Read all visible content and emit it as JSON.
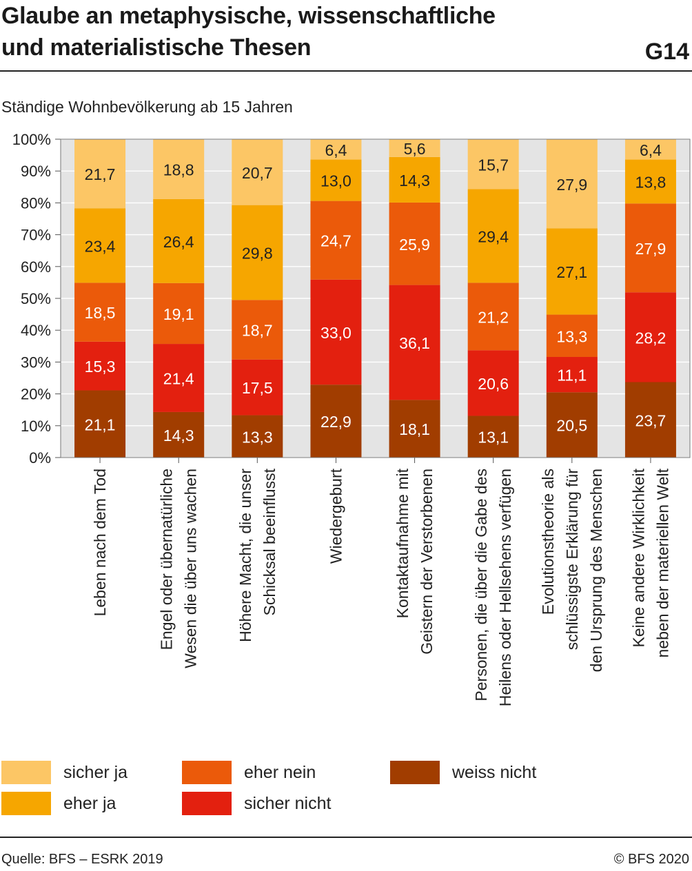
{
  "header": {
    "title_line1": "Glaube an metaphysische, wissenschaftliche",
    "title_line2": "und materialistische Thesen",
    "code": "G14",
    "subtitle": "Ständige Wohnbevölkerung ab 15 Jahren"
  },
  "footer": {
    "source": "Quelle: BFS – ESRK 2019",
    "copyright": "© BFS 2020"
  },
  "legend": {
    "sicher_ja": "sicher ja",
    "eher_ja": "eher ja",
    "eher_nein": "eher nein",
    "sicher_nicht": "sicher nicht",
    "weiss_nicht": "weiss nicht"
  },
  "chart_data": {
    "type": "bar",
    "stacked": true,
    "ylim": [
      0,
      100
    ],
    "y_ticks": [
      "0%",
      "10%",
      "20%",
      "30%",
      "40%",
      "50%",
      "60%",
      "70%",
      "80%",
      "90%",
      "100%"
    ],
    "categories": [
      [
        "Leben nach dem Tod"
      ],
      [
        "Engel oder übernatürliche",
        "Wesen die über uns wachen"
      ],
      [
        "Höhere Macht, die unser",
        "Schicksal beeinflusst"
      ],
      [
        "Wiedergeburt"
      ],
      [
        "Kontaktaufnahme mit",
        "Geistern der Verstorbenen"
      ],
      [
        "Personen, die über die Gabe des",
        "Heilens oder Hellsehens verfügen"
      ],
      [
        "Evolutionstheorie als",
        "schlüssigste Erklärung für",
        "den Ursprung des Menschen"
      ],
      [
        "Keine andere Wirklichkeit",
        "neben der materiellen Welt"
      ]
    ],
    "series": [
      {
        "name": "weiss nicht",
        "color": "#A13D00",
        "values": [
          21.1,
          14.3,
          13.3,
          22.9,
          18.1,
          13.1,
          20.5,
          23.7
        ],
        "labels": [
          "21,1",
          "14,3",
          "13,3",
          "22,9",
          "18,1",
          "13,1",
          "20,5",
          "23,7"
        ]
      },
      {
        "name": "sicher nicht",
        "color": "#E3200F",
        "values": [
          15.3,
          21.4,
          17.5,
          33.0,
          36.1,
          20.6,
          11.1,
          28.2
        ],
        "labels": [
          "15,3",
          "21,4",
          "17,5",
          "33,0",
          "36,1",
          "20,6",
          "11,1",
          "28,2"
        ]
      },
      {
        "name": "eher nein",
        "color": "#EB5A0A",
        "values": [
          18.5,
          19.1,
          18.7,
          24.7,
          25.9,
          21.2,
          13.3,
          27.9
        ],
        "labels": [
          "18,5",
          "19,1",
          "18,7",
          "24,7",
          "25,9",
          "21,2",
          "13,3",
          "27,9"
        ]
      },
      {
        "name": "eher ja",
        "color": "#F6A600",
        "values": [
          23.4,
          26.4,
          29.8,
          13.0,
          14.3,
          29.4,
          27.1,
          13.8
        ],
        "labels": [
          "23,4",
          "26,4",
          "29,8",
          "13,0",
          "14,3",
          "29,4",
          "27,1",
          "13,8"
        ]
      },
      {
        "name": "sicher ja",
        "color": "#FCC665",
        "values": [
          21.7,
          18.8,
          20.7,
          6.4,
          5.6,
          15.7,
          27.9,
          6.4
        ],
        "labels": [
          "21,7",
          "18,8",
          "20,7",
          "6,4",
          "5,6",
          "15,7",
          "27,9",
          "6,4"
        ]
      }
    ],
    "label_colors": {
      "weiss nicht": "#ffffff",
      "sicher nicht": "#ffffff",
      "eher nein": "#ffffff",
      "eher ja": "#222222",
      "sicher ja": "#222222"
    },
    "plot_background": "#E4E4E4",
    "grid": true
  }
}
